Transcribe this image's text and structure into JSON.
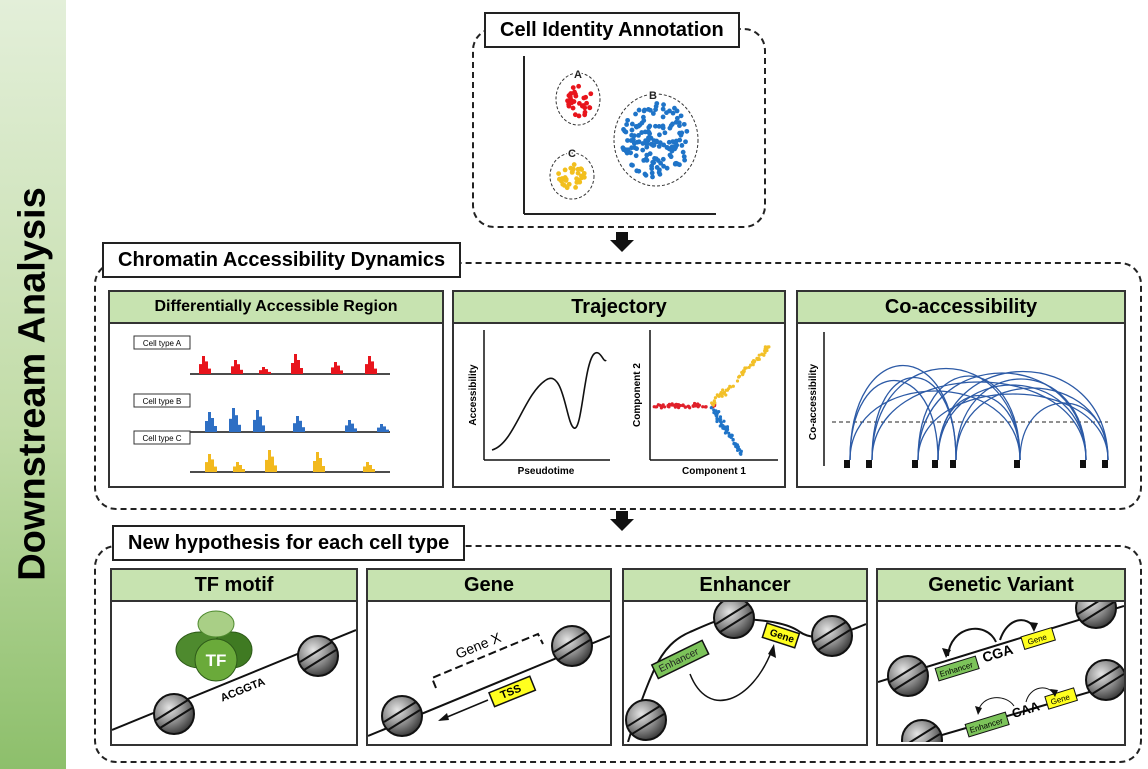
{
  "sidebar": {
    "title": "Downstream Analysis"
  },
  "cell_identity": {
    "title": "Cell Identity Annotation",
    "clusters": [
      {
        "label": "A",
        "color": "#e8141c"
      },
      {
        "label": "B",
        "color": "#1f74c8"
      },
      {
        "label": "C",
        "color": "#f2bf1e"
      }
    ]
  },
  "chromatin": {
    "title": "Chromatin Accessibility Dynamics",
    "dar": {
      "title": "Differentially Accessible Region",
      "cell_types": [
        {
          "label": "Cell type A",
          "color": "#e8141c"
        },
        {
          "label": "Cell type B",
          "color": "#2e6fc4"
        },
        {
          "label": "Cell type C",
          "color": "#f2b91e"
        }
      ]
    },
    "trajectory": {
      "title": "Trajectory",
      "left_ylabel": "Accessibility",
      "left_xlabel": "Pseudotime",
      "right_ylabel": "Component 2",
      "right_xlabel": "Component 1"
    },
    "coaccess": {
      "title": "Co-accessibility",
      "ylabel": "Co-accessibility"
    }
  },
  "hypothesis": {
    "title": "New hypothesis for each cell type",
    "panels": {
      "tf": {
        "title": "TF motif",
        "tf_label": "TF",
        "motif": "ACGGTA"
      },
      "gene": {
        "title": "Gene",
        "gene_label": "Gene X",
        "tss": "TSS"
      },
      "enhancer": {
        "title": "Enhancer",
        "enhancer_label": "Enhancer",
        "gene_label": "Gene"
      },
      "variant": {
        "title": "Genetic Variant",
        "enhancer_label": "Enhancer",
        "gene_label": "Gene",
        "seq_top": "CGA",
        "seq_bottom": "CAA"
      }
    }
  },
  "colors": {
    "panel_header": "#c7e3b0",
    "sidebar_green": "#8dbf6b"
  }
}
